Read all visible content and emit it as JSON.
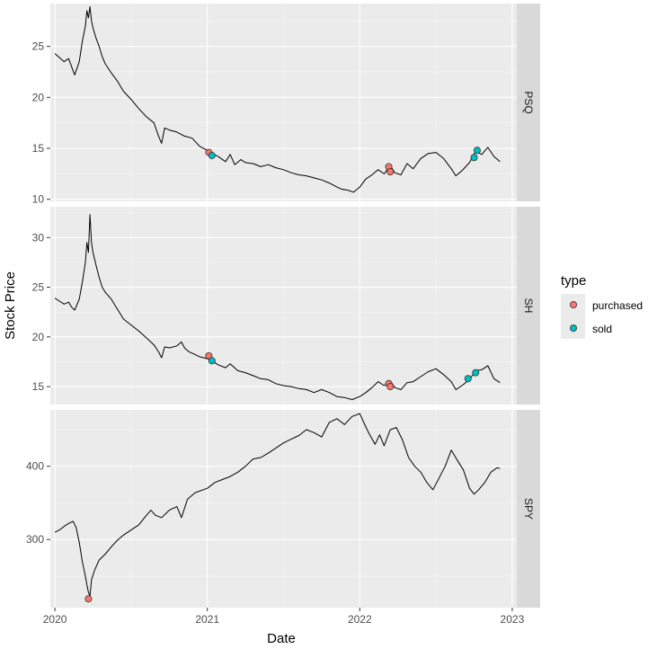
{
  "chart_data": {
    "type": "line",
    "xlabel": "Date",
    "ylabel": "Stock Price",
    "x_ticks": [
      "2020",
      "2021",
      "2022",
      "2023"
    ],
    "x_range": [
      2019.97,
      2023.03
    ],
    "legend": {
      "title": "type",
      "position": "right",
      "items": [
        {
          "label": "purchased",
          "color": "#F8766D"
        },
        {
          "label": "sold",
          "color": "#00BFC4"
        }
      ]
    },
    "panels": [
      {
        "name": "PSQ",
        "ylim": [
          9.8,
          29.2
        ],
        "y_ticks": [
          10,
          15,
          20,
          25
        ],
        "series": [
          [
            2020.0,
            24.3
          ],
          [
            2020.03,
            23.9
          ],
          [
            2020.06,
            23.5
          ],
          [
            2020.09,
            23.8
          ],
          [
            2020.11,
            23.0
          ],
          [
            2020.13,
            22.2
          ],
          [
            2020.16,
            23.5
          ],
          [
            2020.18,
            25.5
          ],
          [
            2020.2,
            27.0
          ],
          [
            2020.21,
            28.5
          ],
          [
            2020.22,
            27.8
          ],
          [
            2020.23,
            28.9
          ],
          [
            2020.24,
            27.5
          ],
          [
            2020.25,
            26.8
          ],
          [
            2020.27,
            25.8
          ],
          [
            2020.29,
            25.0
          ],
          [
            2020.31,
            24.0
          ],
          [
            2020.33,
            23.3
          ],
          [
            2020.37,
            22.4
          ],
          [
            2020.41,
            21.6
          ],
          [
            2020.45,
            20.6
          ],
          [
            2020.5,
            19.8
          ],
          [
            2020.55,
            18.9
          ],
          [
            2020.6,
            18.1
          ],
          [
            2020.65,
            17.5
          ],
          [
            2020.68,
            16.2
          ],
          [
            2020.7,
            15.5
          ],
          [
            2020.72,
            17.0
          ],
          [
            2020.75,
            16.8
          ],
          [
            2020.8,
            16.6
          ],
          [
            2020.85,
            16.2
          ],
          [
            2020.9,
            16.0
          ],
          [
            2020.95,
            15.2
          ],
          [
            2021.0,
            14.8
          ],
          [
            2021.03,
            14.5
          ],
          [
            2021.07,
            14.2
          ],
          [
            2021.12,
            13.7
          ],
          [
            2021.15,
            14.4
          ],
          [
            2021.18,
            13.4
          ],
          [
            2021.22,
            13.9
          ],
          [
            2021.25,
            13.6
          ],
          [
            2021.3,
            13.5
          ],
          [
            2021.35,
            13.2
          ],
          [
            2021.4,
            13.4
          ],
          [
            2021.45,
            13.1
          ],
          [
            2021.5,
            12.9
          ],
          [
            2021.55,
            12.6
          ],
          [
            2021.6,
            12.4
          ],
          [
            2021.65,
            12.3
          ],
          [
            2021.7,
            12.1
          ],
          [
            2021.75,
            11.9
          ],
          [
            2021.8,
            11.6
          ],
          [
            2021.85,
            11.2
          ],
          [
            2021.88,
            11.0
          ],
          [
            2021.92,
            10.9
          ],
          [
            2021.96,
            10.7
          ],
          [
            2022.0,
            11.2
          ],
          [
            2022.04,
            12.0
          ],
          [
            2022.08,
            12.4
          ],
          [
            2022.12,
            12.9
          ],
          [
            2022.16,
            12.5
          ],
          [
            2022.2,
            13.3
          ],
          [
            2022.23,
            12.6
          ],
          [
            2022.27,
            12.4
          ],
          [
            2022.31,
            13.5
          ],
          [
            2022.35,
            13.0
          ],
          [
            2022.4,
            14.0
          ],
          [
            2022.45,
            14.5
          ],
          [
            2022.5,
            14.6
          ],
          [
            2022.55,
            14.0
          ],
          [
            2022.6,
            13.0
          ],
          [
            2022.63,
            12.3
          ],
          [
            2022.67,
            12.8
          ],
          [
            2022.72,
            13.6
          ],
          [
            2022.76,
            14.7
          ],
          [
            2022.8,
            14.4
          ],
          [
            2022.84,
            15.1
          ],
          [
            2022.88,
            14.2
          ],
          [
            2022.92,
            13.7
          ]
        ],
        "purchased": [
          [
            2021.01,
            14.6
          ],
          [
            2022.19,
            13.2
          ],
          [
            2022.2,
            12.7
          ]
        ],
        "sold": [
          [
            2021.03,
            14.3
          ],
          [
            2022.75,
            14.1
          ],
          [
            2022.77,
            14.8
          ]
        ]
      },
      {
        "name": "SH",
        "ylim": [
          13.2,
          33.1
        ],
        "y_ticks": [
          15,
          20,
          25,
          30
        ],
        "series": [
          [
            2020.0,
            23.9
          ],
          [
            2020.03,
            23.6
          ],
          [
            2020.06,
            23.3
          ],
          [
            2020.09,
            23.5
          ],
          [
            2020.11,
            23.0
          ],
          [
            2020.13,
            22.7
          ],
          [
            2020.16,
            23.8
          ],
          [
            2020.18,
            25.5
          ],
          [
            2020.2,
            27.5
          ],
          [
            2020.21,
            29.5
          ],
          [
            2020.22,
            28.5
          ],
          [
            2020.23,
            32.3
          ],
          [
            2020.24,
            29.5
          ],
          [
            2020.25,
            28.5
          ],
          [
            2020.27,
            27.2
          ],
          [
            2020.29,
            26.0
          ],
          [
            2020.31,
            25.0
          ],
          [
            2020.33,
            24.5
          ],
          [
            2020.37,
            23.8
          ],
          [
            2020.41,
            22.8
          ],
          [
            2020.45,
            21.8
          ],
          [
            2020.5,
            21.2
          ],
          [
            2020.55,
            20.6
          ],
          [
            2020.6,
            19.9
          ],
          [
            2020.65,
            19.2
          ],
          [
            2020.68,
            18.5
          ],
          [
            2020.7,
            17.9
          ],
          [
            2020.72,
            19.0
          ],
          [
            2020.75,
            18.9
          ],
          [
            2020.8,
            19.1
          ],
          [
            2020.83,
            19.5
          ],
          [
            2020.85,
            18.9
          ],
          [
            2020.88,
            18.5
          ],
          [
            2020.91,
            18.3
          ],
          [
            2020.95,
            18.0
          ],
          [
            2021.0,
            17.8
          ],
          [
            2021.03,
            17.6
          ],
          [
            2021.07,
            17.2
          ],
          [
            2021.12,
            16.9
          ],
          [
            2021.15,
            17.3
          ],
          [
            2021.2,
            16.6
          ],
          [
            2021.25,
            16.4
          ],
          [
            2021.3,
            16.1
          ],
          [
            2021.35,
            15.8
          ],
          [
            2021.4,
            15.7
          ],
          [
            2021.45,
            15.3
          ],
          [
            2021.5,
            15.1
          ],
          [
            2021.55,
            15.0
          ],
          [
            2021.6,
            14.8
          ],
          [
            2021.65,
            14.7
          ],
          [
            2021.7,
            14.4
          ],
          [
            2021.75,
            14.7
          ],
          [
            2021.8,
            14.4
          ],
          [
            2021.85,
            14.0
          ],
          [
            2021.9,
            13.9
          ],
          [
            2021.95,
            13.7
          ],
          [
            2022.0,
            14.0
          ],
          [
            2022.04,
            14.4
          ],
          [
            2022.08,
            14.9
          ],
          [
            2022.12,
            15.5
          ],
          [
            2022.16,
            15.1
          ],
          [
            2022.2,
            15.6
          ],
          [
            2022.23,
            14.9
          ],
          [
            2022.27,
            14.7
          ],
          [
            2022.31,
            15.4
          ],
          [
            2022.35,
            15.5
          ],
          [
            2022.4,
            16.0
          ],
          [
            2022.45,
            16.5
          ],
          [
            2022.5,
            16.8
          ],
          [
            2022.55,
            16.2
          ],
          [
            2022.6,
            15.5
          ],
          [
            2022.63,
            14.7
          ],
          [
            2022.67,
            15.1
          ],
          [
            2022.72,
            15.7
          ],
          [
            2022.76,
            16.6
          ],
          [
            2022.8,
            16.7
          ],
          [
            2022.84,
            17.1
          ],
          [
            2022.88,
            15.8
          ],
          [
            2022.92,
            15.4
          ]
        ],
        "purchased": [
          [
            2021.01,
            18.1
          ],
          [
            2022.19,
            15.3
          ],
          [
            2022.2,
            15.0
          ]
        ],
        "sold": [
          [
            2021.03,
            17.6
          ],
          [
            2022.71,
            15.8
          ],
          [
            2022.76,
            16.4
          ]
        ]
      },
      {
        "name": "SPY",
        "ylim": [
          207,
          477
        ],
        "y_ticks": [
          300,
          400
        ],
        "series": [
          [
            2020.0,
            310
          ],
          [
            2020.03,
            313
          ],
          [
            2020.06,
            318
          ],
          [
            2020.09,
            322
          ],
          [
            2020.12,
            325
          ],
          [
            2020.14,
            316
          ],
          [
            2020.16,
            296
          ],
          [
            2020.18,
            270
          ],
          [
            2020.2,
            250
          ],
          [
            2020.21,
            238
          ],
          [
            2020.22,
            228
          ],
          [
            2020.23,
            223
          ],
          [
            2020.24,
            245
          ],
          [
            2020.26,
            258
          ],
          [
            2020.29,
            272
          ],
          [
            2020.33,
            280
          ],
          [
            2020.37,
            290
          ],
          [
            2020.41,
            299
          ],
          [
            2020.45,
            306
          ],
          [
            2020.5,
            313
          ],
          [
            2020.55,
            320
          ],
          [
            2020.6,
            333
          ],
          [
            2020.63,
            340
          ],
          [
            2020.66,
            333
          ],
          [
            2020.7,
            330
          ],
          [
            2020.75,
            340
          ],
          [
            2020.8,
            345
          ],
          [
            2020.83,
            330
          ],
          [
            2020.87,
            355
          ],
          [
            2020.92,
            364
          ],
          [
            2021.0,
            370
          ],
          [
            2021.05,
            378
          ],
          [
            2021.1,
            382
          ],
          [
            2021.15,
            386
          ],
          [
            2021.2,
            392
          ],
          [
            2021.25,
            400
          ],
          [
            2021.3,
            410
          ],
          [
            2021.35,
            412
          ],
          [
            2021.4,
            418
          ],
          [
            2021.45,
            425
          ],
          [
            2021.5,
            432
          ],
          [
            2021.55,
            437
          ],
          [
            2021.6,
            442
          ],
          [
            2021.65,
            450
          ],
          [
            2021.7,
            446
          ],
          [
            2021.75,
            440
          ],
          [
            2021.8,
            460
          ],
          [
            2021.85,
            465
          ],
          [
            2021.9,
            457
          ],
          [
            2021.95,
            468
          ],
          [
            2022.0,
            472
          ],
          [
            2022.03,
            458
          ],
          [
            2022.06,
            445
          ],
          [
            2022.1,
            430
          ],
          [
            2022.13,
            443
          ],
          [
            2022.16,
            428
          ],
          [
            2022.2,
            450
          ],
          [
            2022.24,
            453
          ],
          [
            2022.28,
            436
          ],
          [
            2022.32,
            412
          ],
          [
            2022.36,
            400
          ],
          [
            2022.4,
            392
          ],
          [
            2022.44,
            378
          ],
          [
            2022.48,
            368
          ],
          [
            2022.52,
            384
          ],
          [
            2022.56,
            400
          ],
          [
            2022.6,
            422
          ],
          [
            2022.64,
            408
          ],
          [
            2022.68,
            395
          ],
          [
            2022.72,
            370
          ],
          [
            2022.75,
            362
          ],
          [
            2022.78,
            368
          ],
          [
            2022.82,
            378
          ],
          [
            2022.86,
            392
          ],
          [
            2022.9,
            398
          ],
          [
            2022.92,
            397
          ]
        ],
        "purchased": [
          [
            2020.22,
            219
          ]
        ],
        "sold": []
      }
    ]
  }
}
